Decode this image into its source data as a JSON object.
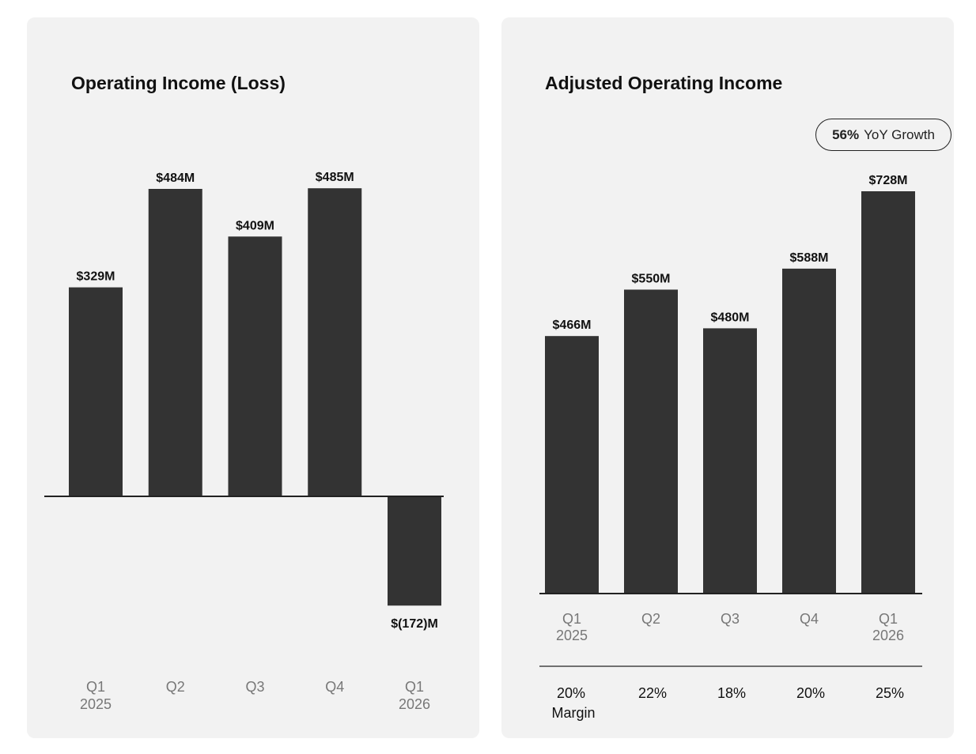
{
  "colors": {
    "bar": "#333333",
    "panel": "#f2f2f2",
    "baseline": "#222222",
    "tick_label": "#777777"
  },
  "badge": {
    "value": "56%",
    "label": "YoY Growth"
  },
  "chart_data": [
    {
      "type": "bar",
      "title": "Operating Income (Loss)",
      "categories": [
        [
          "Q1",
          "2025"
        ],
        [
          "Q2"
        ],
        [
          "Q3"
        ],
        [
          "Q4"
        ],
        [
          "Q1",
          "2026"
        ]
      ],
      "values": [
        329,
        484,
        409,
        485,
        -172
      ],
      "data_labels": [
        "$329M",
        "$484M",
        "$409M",
        "$485M",
        "$(172)M"
      ],
      "ylim": [
        -172,
        485
      ],
      "grid": false,
      "legend": "none"
    },
    {
      "type": "bar",
      "title": "Adjusted Operating Income",
      "categories": [
        [
          "Q1",
          "2025"
        ],
        [
          "Q2"
        ],
        [
          "Q3"
        ],
        [
          "Q4"
        ],
        [
          "Q1",
          "2026"
        ]
      ],
      "values": [
        466,
        550,
        480,
        588,
        728
      ],
      "data_labels": [
        "$466M",
        "$550M",
        "$480M",
        "$588M",
        "$728M"
      ],
      "ylim": [
        0,
        728
      ],
      "grid": false,
      "legend": "none",
      "margins": [
        [
          "20%",
          "Margin"
        ],
        [
          "22%"
        ],
        [
          "18%"
        ],
        [
          "20%"
        ],
        [
          "25%"
        ]
      ]
    }
  ]
}
